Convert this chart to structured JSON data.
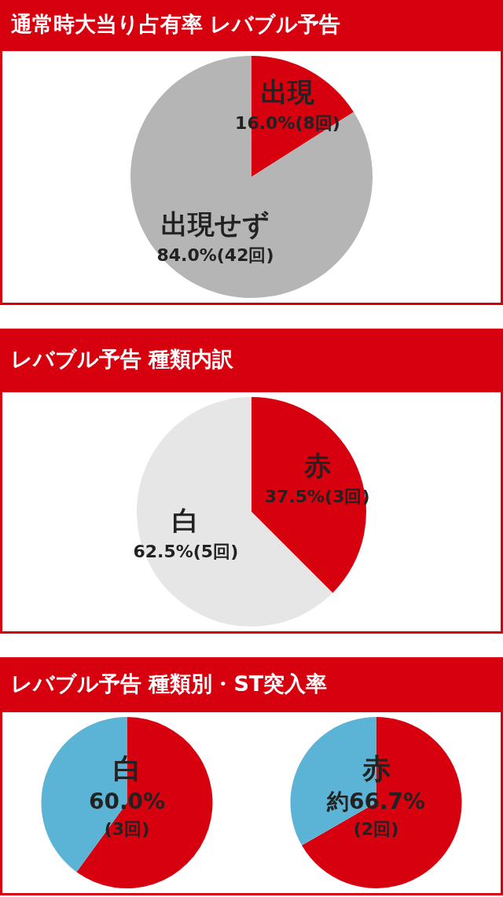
{
  "chart_data": [
    {
      "type": "pie",
      "title": "通常時大当り占有率 レバブル予告",
      "categories": [
        "出現",
        "出現せず"
      ],
      "values": [
        16.0,
        84.0
      ],
      "colors": [
        "#d7000f",
        "#b5b5b5"
      ],
      "value_labels": [
        "16.0%(8回)",
        "84.0%(42回)"
      ]
    },
    {
      "type": "pie",
      "title": "レバブル予告 種類内訳",
      "categories": [
        "赤",
        "白"
      ],
      "values": [
        37.5,
        62.5
      ],
      "colors": [
        "#d7000f",
        "#e6e6e6"
      ],
      "value_labels": [
        "37.5%(3回)",
        "62.5%(5回)"
      ]
    },
    {
      "type": "pie",
      "title": "レバブル予告 種類別・ST突入率",
      "subtitle": "白",
      "categories": [
        null,
        null
      ],
      "values": [
        60.0,
        40.0
      ],
      "colors": [
        "#d7000f",
        "#5bb3d5"
      ],
      "value_labels": [
        "60.0%",
        null
      ],
      "annotations": [
        "(3回)"
      ]
    },
    {
      "type": "pie",
      "subtitle": "赤",
      "categories": [
        null,
        null
      ],
      "values": [
        66.7,
        33.3
      ],
      "colors": [
        "#d7000f",
        "#5bb3d5"
      ],
      "value_labels": [
        "約66.7%",
        null
      ],
      "annotations": [
        "(2回)"
      ]
    }
  ]
}
